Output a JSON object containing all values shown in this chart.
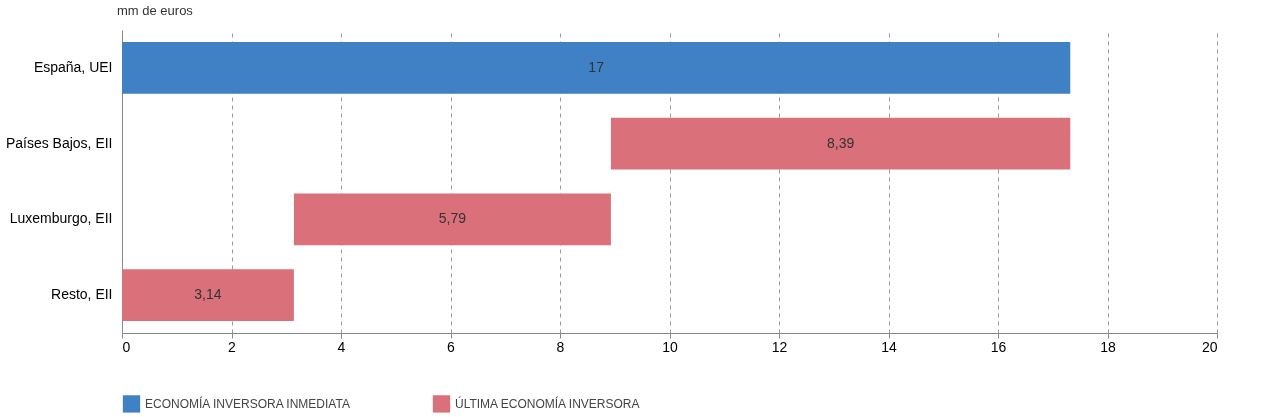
{
  "chart_data": {
    "type": "bar",
    "orientation": "horizontal",
    "title": "mm de euros",
    "categories": [
      "España, UEI",
      "Países Bajos, EII",
      "Luxemburgo, EII",
      "Resto, EII"
    ],
    "series": [
      {
        "name": "ECONOMÍA INVERSORA INMEDIATA",
        "color": "#4080c4",
        "base": [
          0,
          null,
          null,
          null
        ],
        "values": [
          17.32,
          null,
          null,
          null
        ],
        "value_labels": [
          "17",
          null,
          null,
          null
        ]
      },
      {
        "name": "ÚLTIMA ECONOMÍA INVERSORA",
        "color": "#d9707a",
        "base": [
          null,
          8.93,
          3.14,
          0
        ],
        "values": [
          null,
          8.39,
          5.79,
          3.14
        ],
        "value_labels": [
          null,
          "8,39",
          "5,79",
          "3,14"
        ]
      }
    ],
    "xlim": [
      0,
      20
    ],
    "xticks": [
      0,
      2,
      4,
      6,
      8,
      10,
      12,
      14,
      16,
      18,
      20
    ],
    "grid": "x",
    "legend": "bottom"
  }
}
